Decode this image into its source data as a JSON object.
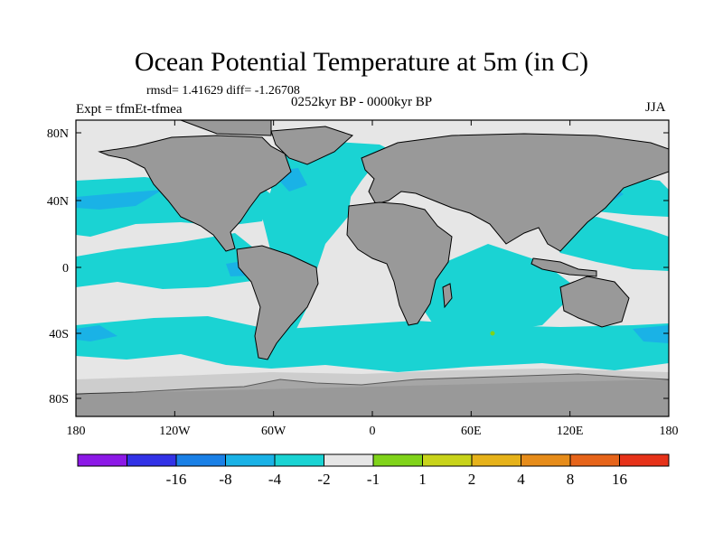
{
  "title": "Ocean Potential Temperature at 5m (in C)",
  "stats": "rmsd= 1.41629 diff= -1.26708",
  "experiment": "Expt = tfmEt-tfmea",
  "period": "0252kyr BP - 0000kyr BP",
  "season": "JJA",
  "lat_ticks": [
    "80N",
    "40N",
    "0",
    "40S",
    "80S"
  ],
  "lon_ticks": [
    "180",
    "120W",
    "60W",
    "0",
    "60E",
    "120E",
    "180"
  ],
  "colors": {
    "land": "#999999",
    "no_change": "#e6e6e6",
    "cool_1_2": "#1ad3d3",
    "cool_2_4": "#1ab2e6",
    "cool_4_8": "#1a80e6",
    "warm_1_2": "#80d31a"
  },
  "colorbar": {
    "colors": [
      "#8c19e6",
      "#3232e6",
      "#1a80e6",
      "#1ab2e6",
      "#1ad3d3",
      "#e6e6e6",
      "#80d31a",
      "#c8d31a",
      "#e6b21a",
      "#e68c1a",
      "#e6641a",
      "#e63219"
    ],
    "labels": [
      "-16",
      "-8",
      "-4",
      "-2",
      "-1",
      "1",
      "2",
      "4",
      "8",
      "16"
    ]
  }
}
